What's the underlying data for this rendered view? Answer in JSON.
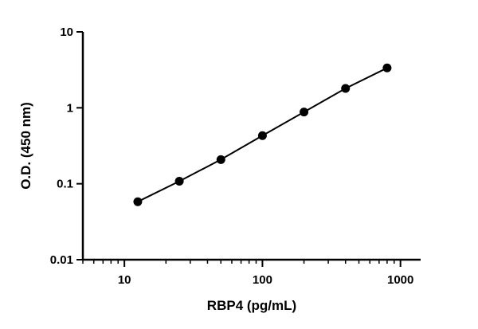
{
  "chart_data": {
    "type": "line",
    "title": "",
    "xlabel": "RBP4 (pg/mL)",
    "ylabel": "O.D. (450 nm)",
    "xscale": "log",
    "yscale": "log",
    "xlim": [
      5,
      1400
    ],
    "ylim": [
      0.01,
      10
    ],
    "xticks": [
      10,
      100,
      1000
    ],
    "xtick_labels": [
      "10",
      "100",
      "1000"
    ],
    "yticks": [
      0.01,
      0.1,
      1,
      10
    ],
    "ytick_labels": [
      "0.01",
      "0.1",
      "1",
      "10"
    ],
    "grid": false,
    "legend": "none",
    "series": [
      {
        "x": [
          12.5,
          25,
          50,
          100,
          200,
          400,
          800
        ],
        "y": [
          0.058,
          0.108,
          0.208,
          0.43,
          0.88,
          1.8,
          3.35
        ]
      }
    ],
    "colors": {
      "line": "#000000",
      "marker": "#000000"
    }
  }
}
